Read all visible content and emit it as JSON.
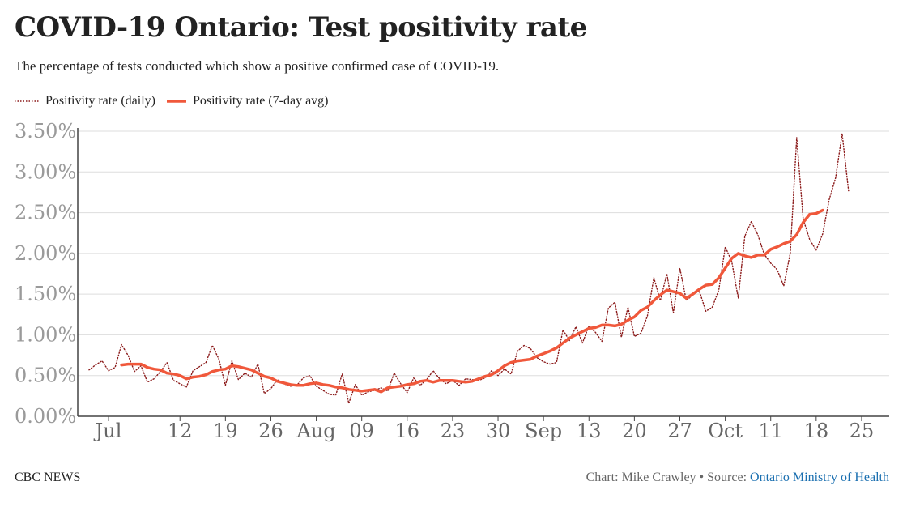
{
  "header": {
    "title": "COVID-19 Ontario: Test positivity rate",
    "subtitle": "The percentage of tests conducted which show a positive confirmed case of COVID-19."
  },
  "footer": {
    "brand": "CBC NEWS",
    "credit": "Chart: Mike Crawley • Source: ",
    "source_link": "Ontario Ministry of Health"
  },
  "chart_data": {
    "type": "line",
    "title": "COVID-19 Ontario: Test positivity rate",
    "subtitle": "The percentage of tests conducted which show a positive confirmed case of COVID-19.",
    "xlabel": "",
    "ylabel": "",
    "x_start": "2020-06-28",
    "x_end": "2020-10-28",
    "ylim": [
      0,
      3.5
    ],
    "yticks": [
      0,
      0.5,
      1.0,
      1.5,
      2.0,
      2.5,
      3.0,
      3.5
    ],
    "ytick_labels": [
      "0.00%",
      "0.50%",
      "1.00%",
      "1.50%",
      "2.00%",
      "2.50%",
      "3.00%",
      "3.50%"
    ],
    "xticks": [
      {
        "label": "Jul",
        "date": "2020-07-01"
      },
      {
        "label": "12",
        "date": "2020-07-12"
      },
      {
        "label": "19",
        "date": "2020-07-19"
      },
      {
        "label": "26",
        "date": "2020-07-26"
      },
      {
        "label": "Aug",
        "date": "2020-08-02"
      },
      {
        "label": "09",
        "date": "2020-08-09"
      },
      {
        "label": "16",
        "date": "2020-08-16"
      },
      {
        "label": "23",
        "date": "2020-08-23"
      },
      {
        "label": "30",
        "date": "2020-08-30"
      },
      {
        "label": "Sep",
        "date": "2020-09-06"
      },
      {
        "label": "13",
        "date": "2020-09-13"
      },
      {
        "label": "20",
        "date": "2020-09-20"
      },
      {
        "label": "27",
        "date": "2020-09-27"
      },
      {
        "label": "Oct",
        "date": "2020-10-04"
      },
      {
        "label": "11",
        "date": "2020-10-11"
      },
      {
        "label": "18",
        "date": "2020-10-18"
      },
      {
        "label": "25",
        "date": "2020-10-25"
      }
    ],
    "grid": true,
    "legend_position": "top-left",
    "series": [
      {
        "name": "Positivity rate (daily)",
        "style": "dotted",
        "color": "#8b1a1a",
        "start_date": "2020-06-28",
        "values": [
          0.57,
          0.63,
          0.68,
          0.56,
          0.6,
          0.88,
          0.75,
          0.55,
          0.62,
          0.42,
          0.46,
          0.55,
          0.66,
          0.44,
          0.4,
          0.36,
          0.56,
          0.61,
          0.66,
          0.87,
          0.7,
          0.38,
          0.68,
          0.45,
          0.53,
          0.48,
          0.64,
          0.28,
          0.34,
          0.45,
          0.4,
          0.37,
          0.38,
          0.47,
          0.5,
          0.37,
          0.32,
          0.27,
          0.26,
          0.52,
          0.16,
          0.39,
          0.26,
          0.3,
          0.32,
          0.35,
          0.31,
          0.53,
          0.4,
          0.29,
          0.47,
          0.38,
          0.45,
          0.56,
          0.46,
          0.4,
          0.44,
          0.38,
          0.46,
          0.45,
          0.44,
          0.47,
          0.56,
          0.5,
          0.58,
          0.52,
          0.8,
          0.87,
          0.83,
          0.72,
          0.67,
          0.64,
          0.66,
          1.06,
          0.93,
          1.1,
          0.9,
          1.11,
          1.03,
          0.92,
          1.33,
          1.4,
          0.97,
          1.34,
          0.98,
          1.02,
          1.23,
          1.7,
          1.42,
          1.75,
          1.27,
          1.82,
          1.42,
          1.49,
          1.54,
          1.29,
          1.34,
          1.55,
          2.08,
          1.9,
          1.45,
          2.21,
          2.39,
          2.23,
          1.99,
          1.88,
          1.8,
          1.6,
          2.0,
          3.42,
          2.42,
          2.17,
          2.04,
          2.24,
          2.66,
          2.93,
          3.47,
          2.76
        ]
      },
      {
        "name": "Positivity rate (7-day avg)",
        "style": "solid",
        "color": "#f0583b",
        "start_date": "2020-07-03",
        "values": [
          0.63,
          0.64,
          0.64,
          0.64,
          0.6,
          0.58,
          0.57,
          0.53,
          0.52,
          0.5,
          0.46,
          0.48,
          0.49,
          0.51,
          0.55,
          0.57,
          0.58,
          0.62,
          0.61,
          0.59,
          0.57,
          0.53,
          0.49,
          0.47,
          0.43,
          0.41,
          0.39,
          0.38,
          0.38,
          0.4,
          0.41,
          0.39,
          0.38,
          0.36,
          0.35,
          0.33,
          0.32,
          0.31,
          0.32,
          0.33,
          0.3,
          0.35,
          0.36,
          0.37,
          0.39,
          0.4,
          0.43,
          0.44,
          0.42,
          0.44,
          0.44,
          0.44,
          0.43,
          0.42,
          0.43,
          0.46,
          0.49,
          0.51,
          0.56,
          0.62,
          0.66,
          0.68,
          0.69,
          0.7,
          0.74,
          0.77,
          0.8,
          0.84,
          0.9,
          0.96,
          1.0,
          1.04,
          1.08,
          1.09,
          1.12,
          1.12,
          1.11,
          1.13,
          1.18,
          1.22,
          1.3,
          1.34,
          1.42,
          1.49,
          1.55,
          1.53,
          1.51,
          1.45,
          1.5,
          1.56,
          1.61,
          1.62,
          1.7,
          1.82,
          1.94,
          2.0,
          1.97,
          1.95,
          1.98,
          1.98,
          2.05,
          2.08,
          2.12,
          2.15,
          2.23,
          2.38,
          2.48,
          2.49,
          2.53
        ]
      }
    ]
  },
  "colors": {
    "daily": "#8b1a1a",
    "avg": "#f0583b",
    "grid": "#dddddd",
    "axis": "#444444",
    "source_link": "#1a6fb0"
  }
}
